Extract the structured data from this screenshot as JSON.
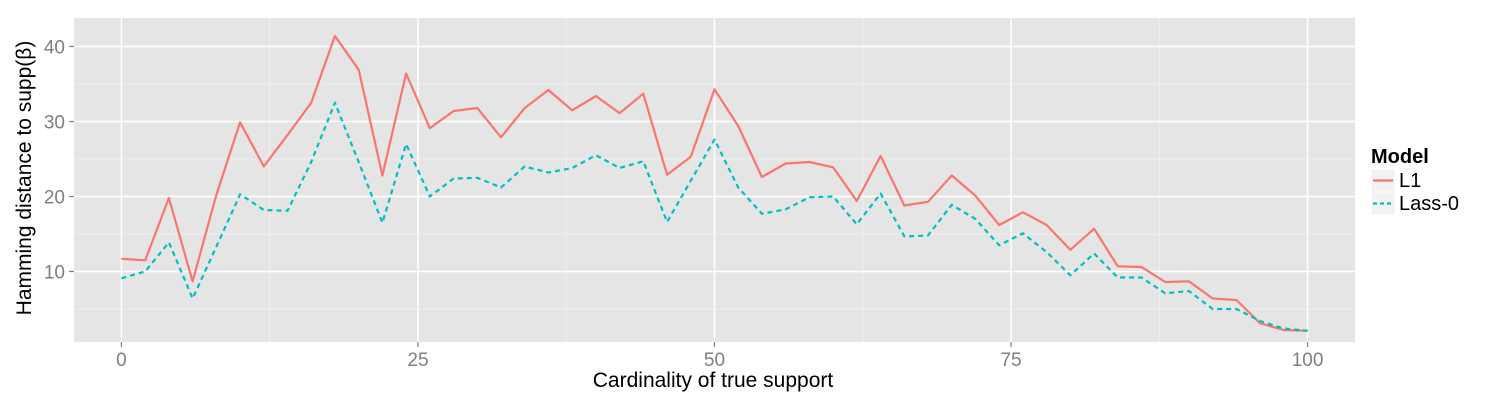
{
  "chart_data": {
    "type": "line",
    "title": "",
    "xlabel": "Cardinality of true support",
    "ylabel": "Hamming distance to supp(β)",
    "xlim": [
      -4,
      104
    ],
    "ylim": [
      0.6,
      43.8
    ],
    "xticks": [
      0,
      25,
      50,
      75,
      100
    ],
    "yticks": [
      10,
      20,
      30,
      40
    ],
    "grid": true,
    "legend": {
      "title": "Model",
      "position": "right"
    },
    "x": [
      0,
      2,
      4,
      6,
      8,
      10,
      12,
      14,
      16,
      18,
      20,
      22,
      24,
      26,
      28,
      30,
      32,
      34,
      36,
      38,
      40,
      42,
      44,
      46,
      48,
      50,
      52,
      54,
      56,
      58,
      60,
      62,
      64,
      66,
      68,
      70,
      72,
      74,
      76,
      78,
      80,
      82,
      84,
      86,
      88,
      90,
      92,
      94,
      96,
      98,
      100
    ],
    "series": [
      {
        "name": "L1",
        "color": "#F8766D",
        "dash": "solid",
        "values": [
          11.7,
          11.5,
          19.8,
          8.7,
          20.2,
          29.9,
          24.0,
          28.2,
          32.5,
          41.4,
          36.9,
          22.8,
          36.4,
          29.1,
          31.4,
          31.8,
          27.9,
          31.8,
          34.2,
          31.5,
          33.4,
          31.1,
          33.7,
          22.9,
          25.3,
          34.3,
          29.4,
          22.6,
          24.4,
          24.6,
          23.9,
          19.4,
          25.4,
          18.8,
          19.3,
          22.8,
          20.1,
          16.2,
          17.9,
          16.2,
          12.9,
          15.7,
          10.7,
          10.6,
          8.6,
          8.7,
          6.4,
          6.2,
          3.1,
          2.2,
          2.1
        ]
      },
      {
        "name": "Lass-0",
        "color": "#00BFC4",
        "dash": "dashed",
        "values": [
          9.1,
          10.0,
          13.9,
          6.4,
          13.3,
          20.3,
          18.2,
          18.1,
          24.6,
          32.5,
          24.6,
          16.5,
          27.0,
          20.0,
          22.4,
          22.5,
          21.2,
          24.0,
          23.2,
          23.8,
          25.5,
          23.8,
          24.7,
          16.6,
          22.1,
          27.6,
          21.2,
          17.7,
          18.3,
          19.9,
          20.0,
          16.3,
          20.4,
          14.7,
          14.8,
          18.9,
          17.0,
          13.5,
          15.1,
          12.6,
          9.5,
          12.4,
          9.2,
          9.2,
          7.1,
          7.4,
          5.0,
          5.0,
          3.4,
          2.4,
          2.1
        ]
      }
    ]
  }
}
